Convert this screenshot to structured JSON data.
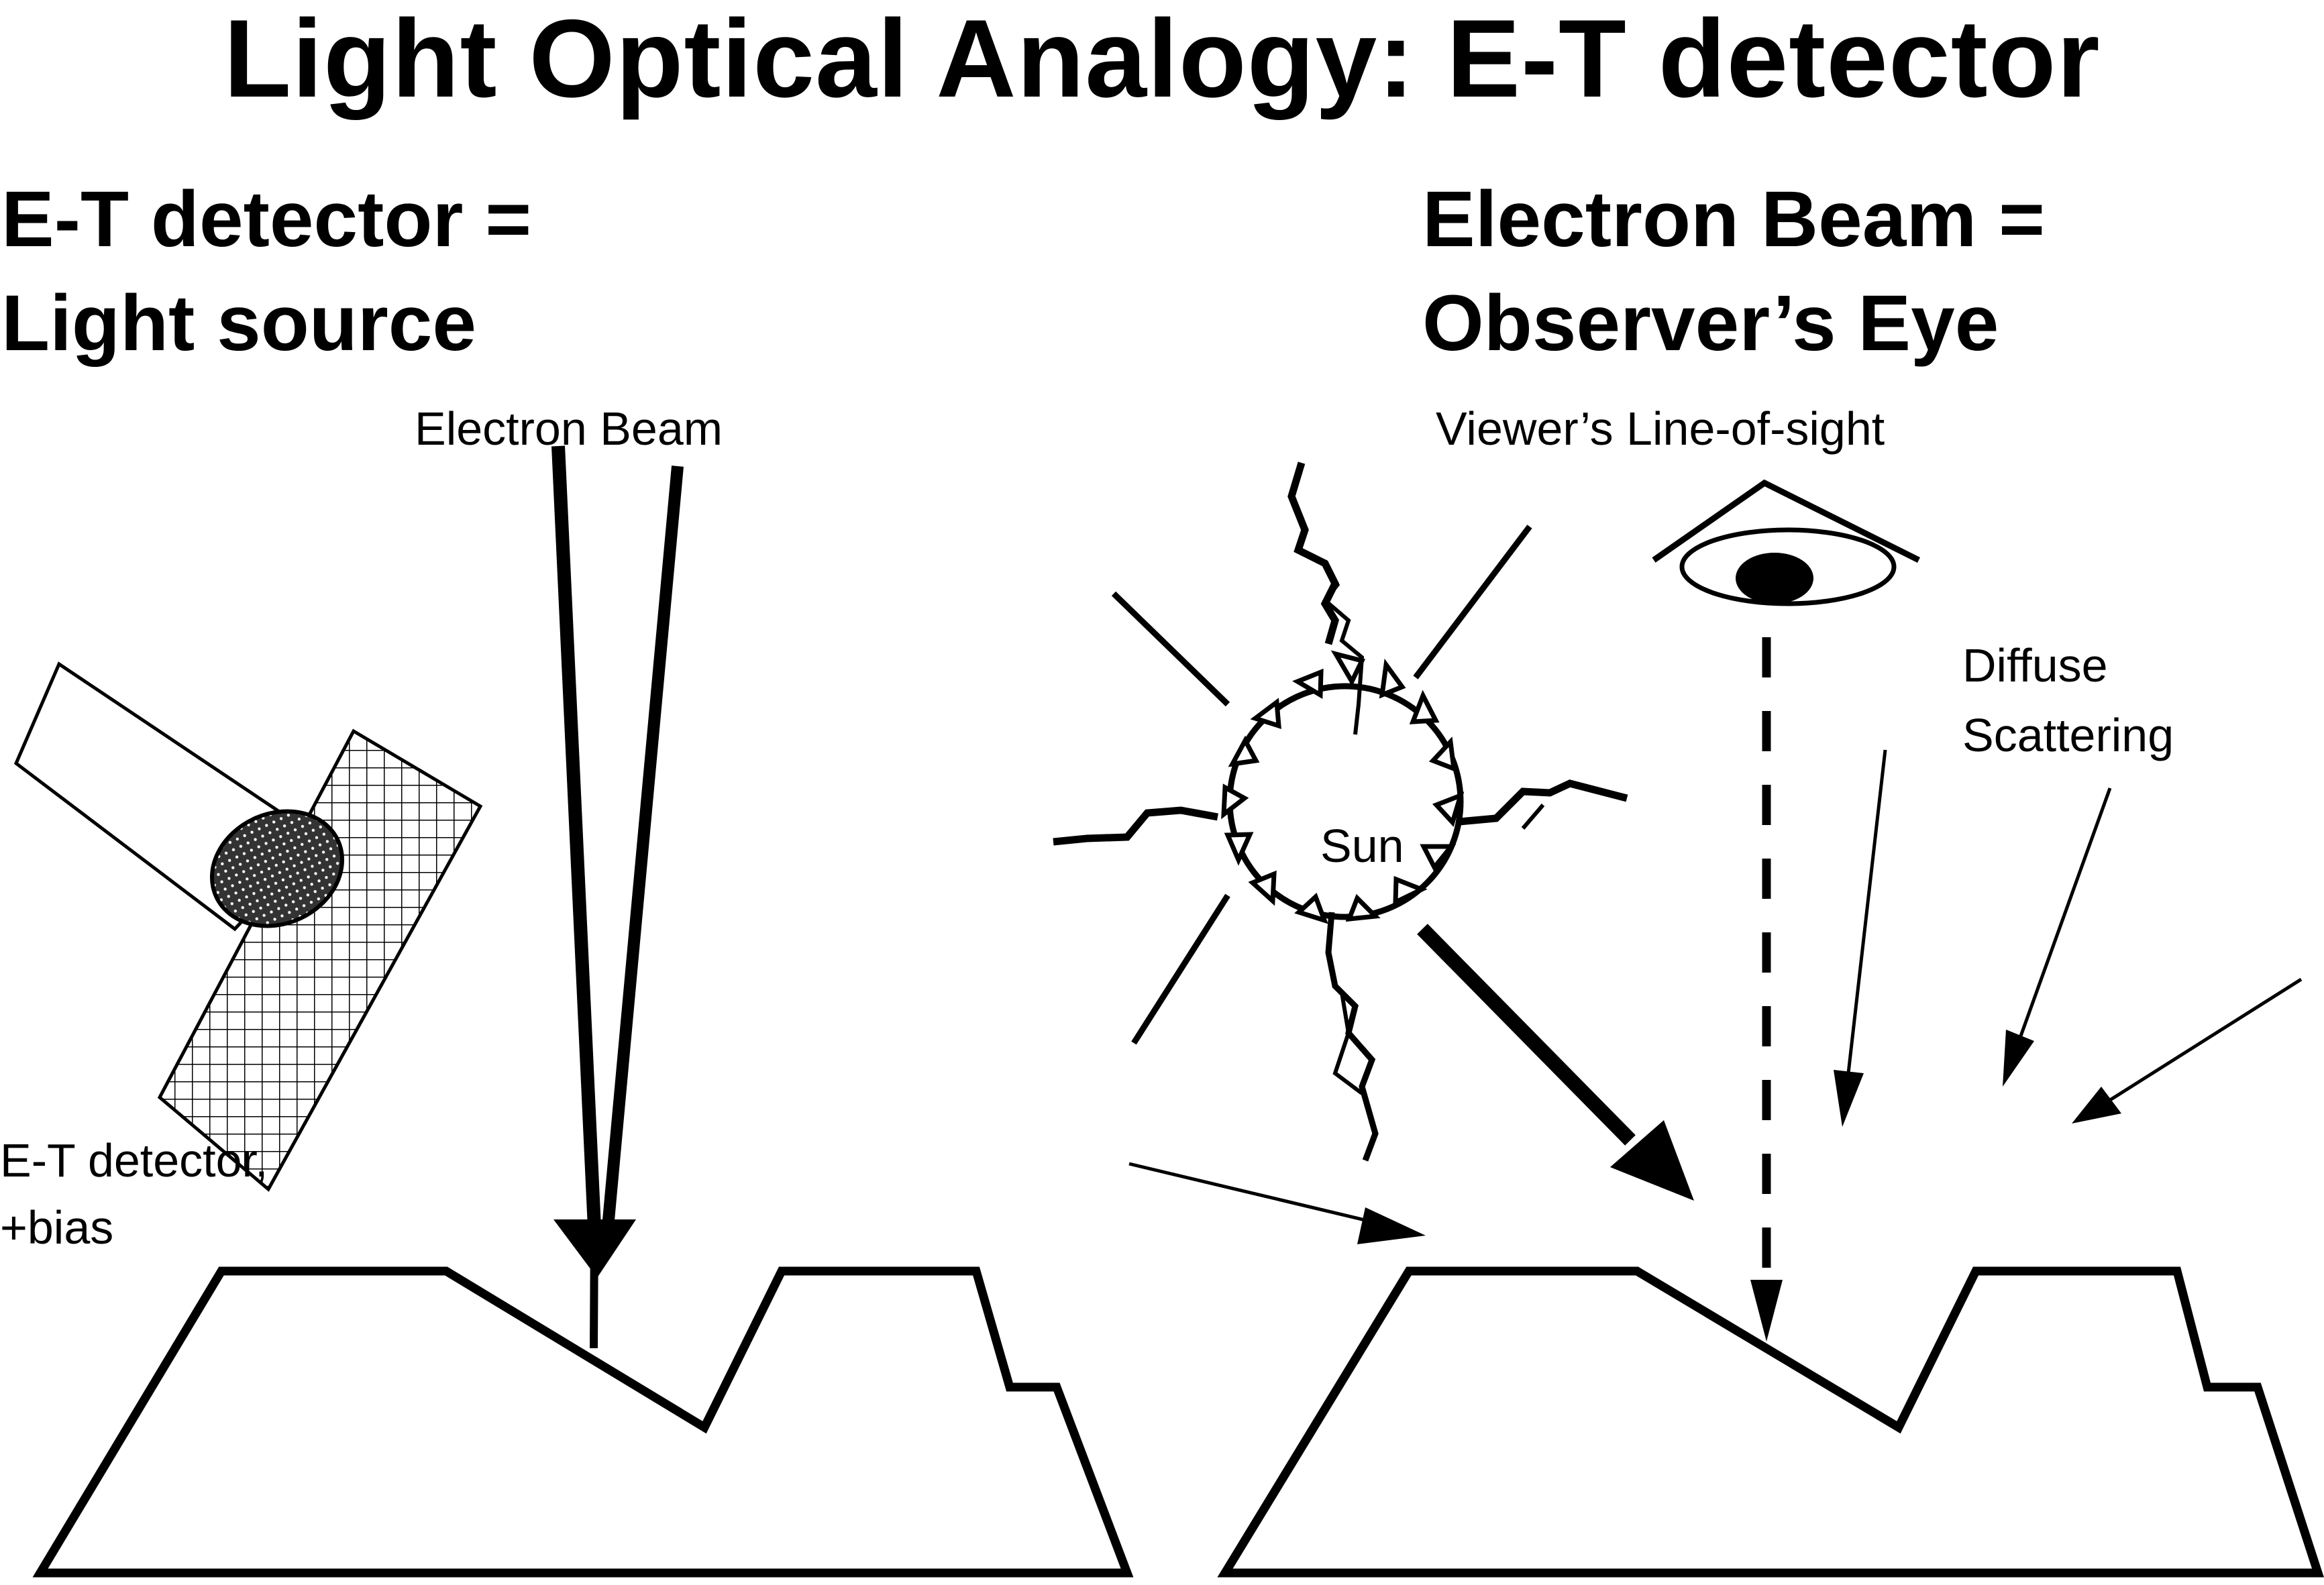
{
  "title": "Light Optical Analogy: E-T detector",
  "left_heading": {
    "line1": "E-T detector =",
    "line2": "Light source"
  },
  "right_heading": {
    "line1": "Electron Beam =",
    "line2": "Observer’s Eye"
  },
  "labels": {
    "electron_beam": "Electron Beam",
    "viewers_line_of_sight": "Viewer’s Line-of-sight",
    "diffuse_line1": "Diffuse",
    "diffuse_line2": "Scattering",
    "et_detector_line1": "E-T detector,",
    "et_detector_line2": "+bias",
    "sun": "Sun"
  },
  "icons": [
    "eye-icon",
    "sun-icon",
    "detector-icon"
  ]
}
